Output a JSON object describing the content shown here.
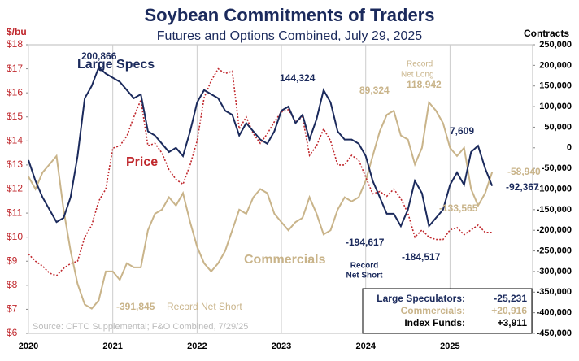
{
  "chart_data": {
    "type": "line",
    "title": "Soybean Commitments of Traders",
    "subtitle": "Futures and Options Combined, July 29, 2025",
    "y_label": "$/bu",
    "y2_label": "Contracts",
    "source": "Source: CFTC Supplemental; F&O Combined, 7/29/25",
    "x": [
      2020,
      2020.083,
      2020.167,
      2020.25,
      2020.333,
      2020.417,
      2020.5,
      2020.583,
      2020.667,
      2020.75,
      2020.833,
      2020.917,
      2021,
      2021.083,
      2021.167,
      2021.25,
      2021.333,
      2021.417,
      2021.5,
      2021.583,
      2021.667,
      2021.75,
      2021.833,
      2021.917,
      2022,
      2022.083,
      2022.167,
      2022.25,
      2022.333,
      2022.417,
      2022.5,
      2022.583,
      2022.667,
      2022.75,
      2022.833,
      2022.917,
      2023,
      2023.083,
      2023.167,
      2023.25,
      2023.333,
      2023.417,
      2023.5,
      2023.583,
      2023.667,
      2023.75,
      2023.833,
      2023.917,
      2024,
      2024.083,
      2024.167,
      2024.25,
      2024.333,
      2024.417,
      2024.5,
      2024.583,
      2024.667,
      2024.75,
      2024.833,
      2024.917,
      2025,
      2025.083,
      2025.167,
      2025.25,
      2025.333,
      2025.417,
      2025.5
    ],
    "xlim": [
      2020,
      2025.98
    ],
    "xticks": [
      2020,
      2021,
      2022,
      2023,
      2024,
      2025
    ],
    "ylim": [
      6,
      18
    ],
    "yticks": [
      {
        "value": 6,
        "label": "$6"
      },
      {
        "value": 7,
        "label": "$7"
      },
      {
        "value": 8,
        "label": "$8"
      },
      {
        "value": 9,
        "label": "$9"
      },
      {
        "value": 10,
        "label": "$10"
      },
      {
        "value": 11,
        "label": "$11"
      },
      {
        "value": 12,
        "label": "$12"
      },
      {
        "value": 13,
        "label": "$13"
      },
      {
        "value": 14,
        "label": "$14"
      },
      {
        "value": 15,
        "label": "$15"
      },
      {
        "value": 16,
        "label": "$16"
      },
      {
        "value": 17,
        "label": "$17"
      },
      {
        "value": 18,
        "label": "$18"
      }
    ],
    "y2lim": [
      -450000,
      250000
    ],
    "y2ticks": [
      {
        "value": -450000,
        "label": "-450,000"
      },
      {
        "value": -400000,
        "label": "-400,000"
      },
      {
        "value": -350000,
        "label": "-350,000"
      },
      {
        "value": -300000,
        "label": "-300,000"
      },
      {
        "value": -250000,
        "label": "-250,000"
      },
      {
        "value": -200000,
        "label": "-200,000"
      },
      {
        "value": -150000,
        "label": "-150,000"
      },
      {
        "value": -100000,
        "label": "-100,000"
      },
      {
        "value": -50000,
        "label": "-50,000"
      },
      0,
      {
        "value": 50000,
        "label": "50,000"
      },
      {
        "value": 100000,
        "label": "100,000"
      },
      {
        "value": 150000,
        "label": "150,000"
      },
      {
        "value": 200000,
        "label": "200,000"
      },
      {
        "value": 250000,
        "label": "250,000"
      }
    ],
    "series": [
      {
        "name": "Price",
        "color": "#c0282d",
        "axis": "y",
        "values": [
          9.3,
          9.0,
          8.8,
          8.5,
          8.4,
          8.7,
          8.9,
          9.0,
          10.0,
          10.5,
          11.5,
          12.0,
          13.7,
          13.8,
          14.2,
          15.0,
          15.7,
          13.8,
          13.9,
          13.5,
          12.8,
          12.4,
          12.2,
          13.0,
          14.0,
          15.8,
          16.5,
          17.0,
          16.8,
          16.9,
          14.5,
          15.0,
          14.3,
          13.9,
          14.3,
          14.8,
          15.2,
          15.3,
          14.8,
          15.0,
          13.4,
          13.8,
          14.5,
          14.0,
          13.0,
          13.0,
          13.4,
          13.2,
          12.5,
          11.8,
          11.9,
          11.7,
          12.0,
          11.6,
          11.0,
          10.0,
          10.3,
          10.0,
          9.9,
          9.9,
          10.3,
          10.4,
          10.1,
          10.3,
          10.5,
          10.2,
          10.2
        ]
      },
      {
        "name": "Large Specs",
        "color": "#1b2a5c",
        "axis": "y2",
        "values": [
          -30000,
          -80000,
          -120000,
          -150000,
          -180000,
          -170000,
          -120000,
          -20000,
          120000,
          150000,
          195000,
          180000,
          170000,
          160000,
          140000,
          120000,
          130000,
          40000,
          30000,
          10000,
          -10000,
          0,
          -20000,
          40000,
          110000,
          140000,
          130000,
          120000,
          90000,
          80000,
          30000,
          60000,
          40000,
          20000,
          10000,
          40000,
          90000,
          100000,
          60000,
          80000,
          20000,
          70000,
          140000,
          110000,
          40000,
          20000,
          20000,
          10000,
          -20000,
          -80000,
          -120000,
          -160000,
          -160000,
          -190000,
          -150000,
          -80000,
          -110000,
          -190000,
          -170000,
          -150000,
          -90000,
          -60000,
          -90000,
          -10000,
          5000,
          -50000,
          -92367
        ]
      },
      {
        "name": "Commercials",
        "color": "#c9b48a",
        "axis": "y2",
        "values": [
          -70000,
          -100000,
          -60000,
          -40000,
          -20000,
          -150000,
          -250000,
          -330000,
          -380000,
          -390000,
          -370000,
          -300000,
          -300000,
          -320000,
          -280000,
          -290000,
          -290000,
          -200000,
          -160000,
          -150000,
          -120000,
          -140000,
          -110000,
          -180000,
          -240000,
          -280000,
          -300000,
          -280000,
          -250000,
          -200000,
          -150000,
          -160000,
          -120000,
          -100000,
          -110000,
          -160000,
          -180000,
          -200000,
          -180000,
          -170000,
          -120000,
          -160000,
          -210000,
          -200000,
          -150000,
          -120000,
          -130000,
          -120000,
          -80000,
          -20000,
          40000,
          80000,
          90000,
          30000,
          20000,
          -40000,
          0,
          110000,
          90000,
          60000,
          0,
          -20000,
          0,
          -100000,
          -140000,
          -110000,
          -58940
        ]
      }
    ],
    "annotations": [
      "200,866",
      "144,324",
      "89,324",
      "Record",
      "Net Long",
      "118,942",
      "7,609",
      "-58,940",
      "-92,367",
      "-133,565",
      "-194,617",
      "Record",
      "Net Short",
      "-184,517",
      "-391,845",
      "Record Net Short"
    ],
    "summary": [
      {
        "label": "Large Speculators:",
        "value": "-25,231"
      },
      {
        "label": "Commercials:",
        "value": "+20,916"
      },
      {
        "label": "Index Funds:",
        "value": "+3,911"
      }
    ]
  }
}
